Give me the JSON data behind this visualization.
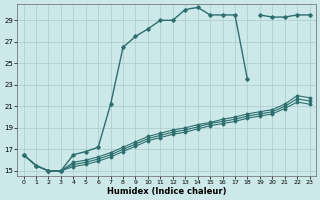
{
  "xlabel": "Humidex (Indice chaleur)",
  "color": "#2d6e6e",
  "bg_color": "#cce8e8",
  "grid_color": "#aacccc",
  "ylim": [
    14.5,
    30.5
  ],
  "yticks": [
    15,
    17,
    19,
    21,
    23,
    25,
    27,
    29
  ],
  "xlim": [
    -0.5,
    23.5
  ],
  "xticks": [
    0,
    1,
    2,
    3,
    4,
    5,
    6,
    7,
    8,
    9,
    10,
    11,
    12,
    13,
    14,
    15,
    16,
    17,
    18,
    19,
    20,
    21,
    22,
    23
  ],
  "main_x": [
    0,
    1,
    2,
    3,
    4,
    5,
    6,
    7,
    8,
    9,
    10,
    11,
    12,
    13,
    14,
    15,
    16,
    17,
    18
  ],
  "main_y": [
    16.5,
    15.5,
    15.0,
    15.0,
    16.5,
    16.8,
    17.2,
    21.2,
    26.5,
    27.5,
    28.2,
    29.0,
    29.0,
    30.0,
    30.2,
    29.5,
    29.5,
    29.5,
    23.5
  ],
  "seg2_x": [
    19,
    20,
    21,
    22,
    23
  ],
  "seg2_y": [
    29.5,
    29.3,
    29.3,
    29.5,
    29.5
  ],
  "trend1_x": [
    0,
    1,
    2,
    3,
    4,
    5,
    6,
    7,
    8,
    9,
    10,
    11,
    12,
    13,
    14,
    15,
    16,
    17,
    18,
    19,
    20,
    21,
    22,
    23
  ],
  "trend1_y": [
    16.5,
    15.5,
    15.0,
    15.0,
    15.8,
    16.0,
    16.3,
    16.7,
    17.2,
    17.7,
    18.2,
    18.5,
    18.8,
    19.0,
    19.3,
    19.5,
    19.8,
    20.0,
    20.3,
    20.5,
    20.7,
    21.2,
    22.0,
    21.8
  ],
  "trend2_x": [
    0,
    1,
    2,
    3,
    4,
    5,
    6,
    7,
    8,
    9,
    10,
    11,
    12,
    13,
    14,
    15,
    16,
    17,
    18,
    19,
    20,
    21,
    22,
    23
  ],
  "trend2_y": [
    16.5,
    15.5,
    15.0,
    15.0,
    15.6,
    15.8,
    16.1,
    16.5,
    17.0,
    17.5,
    18.0,
    18.3,
    18.6,
    18.8,
    19.1,
    19.4,
    19.6,
    19.8,
    20.1,
    20.3,
    20.5,
    21.0,
    21.7,
    21.5
  ],
  "trend3_x": [
    0,
    1,
    2,
    3,
    4,
    5,
    6,
    7,
    8,
    9,
    10,
    11,
    12,
    13,
    14,
    15,
    16,
    17,
    18,
    19,
    20,
    21,
    22,
    23
  ],
  "trend3_y": [
    16.5,
    15.5,
    15.0,
    15.0,
    15.4,
    15.6,
    15.9,
    16.3,
    16.8,
    17.3,
    17.8,
    18.1,
    18.4,
    18.6,
    18.9,
    19.2,
    19.4,
    19.6,
    19.9,
    20.1,
    20.3,
    20.8,
    21.4,
    21.2
  ]
}
